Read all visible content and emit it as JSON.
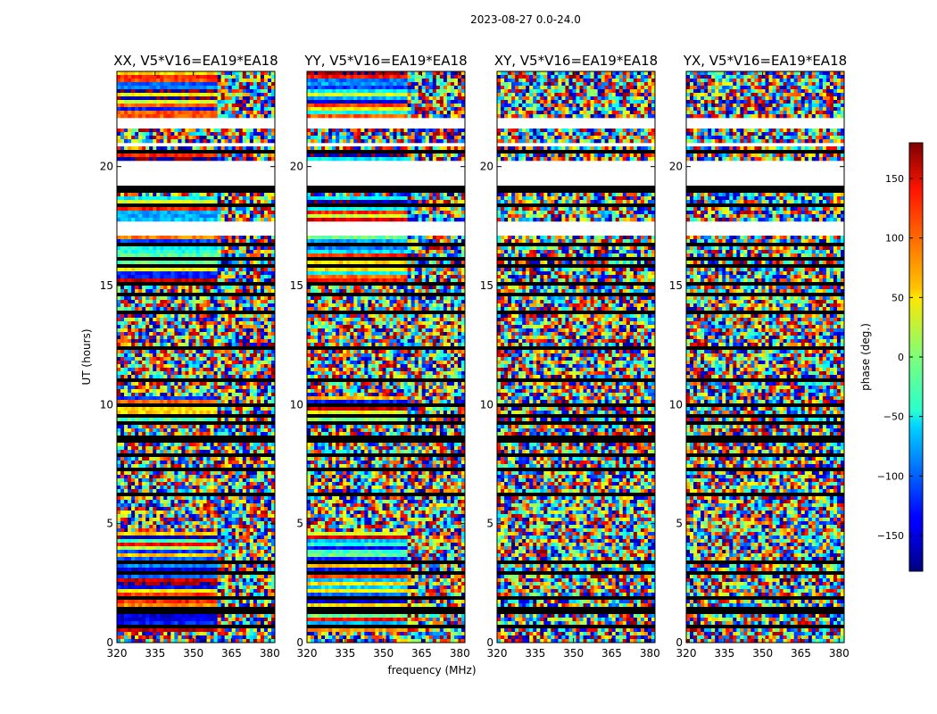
{
  "figure": {
    "suptitle": "2023-08-27 0.0-24.0"
  },
  "chart_data": {
    "type": "heatmap",
    "xlabel": "frequency (MHz)",
    "ylabel": "UT (hours)",
    "xlim": [
      320,
      382
    ],
    "ylim": [
      0,
      24
    ],
    "x_ticks": [
      320,
      335,
      350,
      365,
      380
    ],
    "y_ticks": [
      0,
      5,
      10,
      15,
      20
    ],
    "panels": [
      {
        "title": "XX, V5*V16=EA19*EA18",
        "correlation": "XX"
      },
      {
        "title": "YY, V5*V16=EA19*EA18",
        "correlation": "YY"
      },
      {
        "title": "XY, V5*V16=EA19*EA18",
        "correlation": "XY"
      },
      {
        "title": "YX, V5*V16=EA19*EA18",
        "correlation": "YX"
      }
    ],
    "colorbar": {
      "label": "phase (deg.)",
      "range": [
        -180,
        180
      ],
      "ticks": [
        150,
        100,
        50,
        0,
        -50,
        -100,
        -150
      ],
      "colormap": "jet"
    },
    "flagged_ut_ranges": [
      [
        18.9,
        19.2
      ],
      [
        0.28,
        0.36
      ],
      [
        0.62,
        0.7
      ],
      [
        1.2,
        1.32
      ],
      [
        1.42,
        1.5
      ],
      [
        1.85,
        1.95
      ],
      [
        2.2,
        2.28
      ],
      [
        2.5,
        2.56
      ],
      [
        2.92,
        3.0
      ],
      [
        3.35,
        3.42
      ],
      [
        3.72,
        3.8
      ],
      [
        4.05,
        4.12
      ],
      [
        4.35,
        4.42
      ],
      [
        4.62,
        4.72
      ],
      [
        4.88,
        4.96
      ],
      [
        5.22,
        5.3
      ],
      [
        6.2,
        6.32
      ],
      [
        6.88,
        6.95
      ],
      [
        7.25,
        7.3
      ],
      [
        7.48,
        7.55
      ],
      [
        7.85,
        7.92
      ],
      [
        8.22,
        8.3
      ],
      [
        8.42,
        8.5
      ],
      [
        8.62,
        8.72
      ],
      [
        9.22,
        9.28
      ],
      [
        9.48,
        9.55
      ],
      [
        9.92,
        9.98
      ],
      [
        10.35,
        10.42
      ],
      [
        10.62,
        10.68
      ],
      [
        11.02,
        11.1
      ],
      [
        11.5,
        11.58
      ],
      [
        12.35,
        12.42
      ],
      [
        12.9,
        12.97
      ],
      [
        13.6,
        13.68
      ],
      [
        13.82,
        14.0
      ],
      [
        14.25,
        14.32
      ],
      [
        14.62,
        14.72
      ],
      [
        15.02,
        15.1
      ],
      [
        15.28,
        15.35
      ],
      [
        15.55,
        15.62
      ],
      [
        15.8,
        15.88
      ],
      [
        16.1,
        16.18
      ],
      [
        16.45,
        16.52
      ],
      [
        16.7,
        16.8
      ],
      [
        16.95,
        17.02
      ],
      [
        17.65,
        17.72
      ],
      [
        18.0,
        18.07
      ],
      [
        18.32,
        18.4
      ],
      [
        18.6,
        18.66
      ],
      [
        20.55,
        20.65
      ],
      [
        21.55,
        21.62
      ],
      [
        22.6,
        22.68
      ],
      [
        23.35,
        23.42
      ]
    ],
    "empty_ut_ranges": [
      [
        0.0,
        0.05
      ],
      [
        17.1,
        17.65
      ],
      [
        19.2,
        20.2
      ],
      [
        20.8,
        21.0
      ],
      [
        21.6,
        22.0
      ]
    ]
  }
}
